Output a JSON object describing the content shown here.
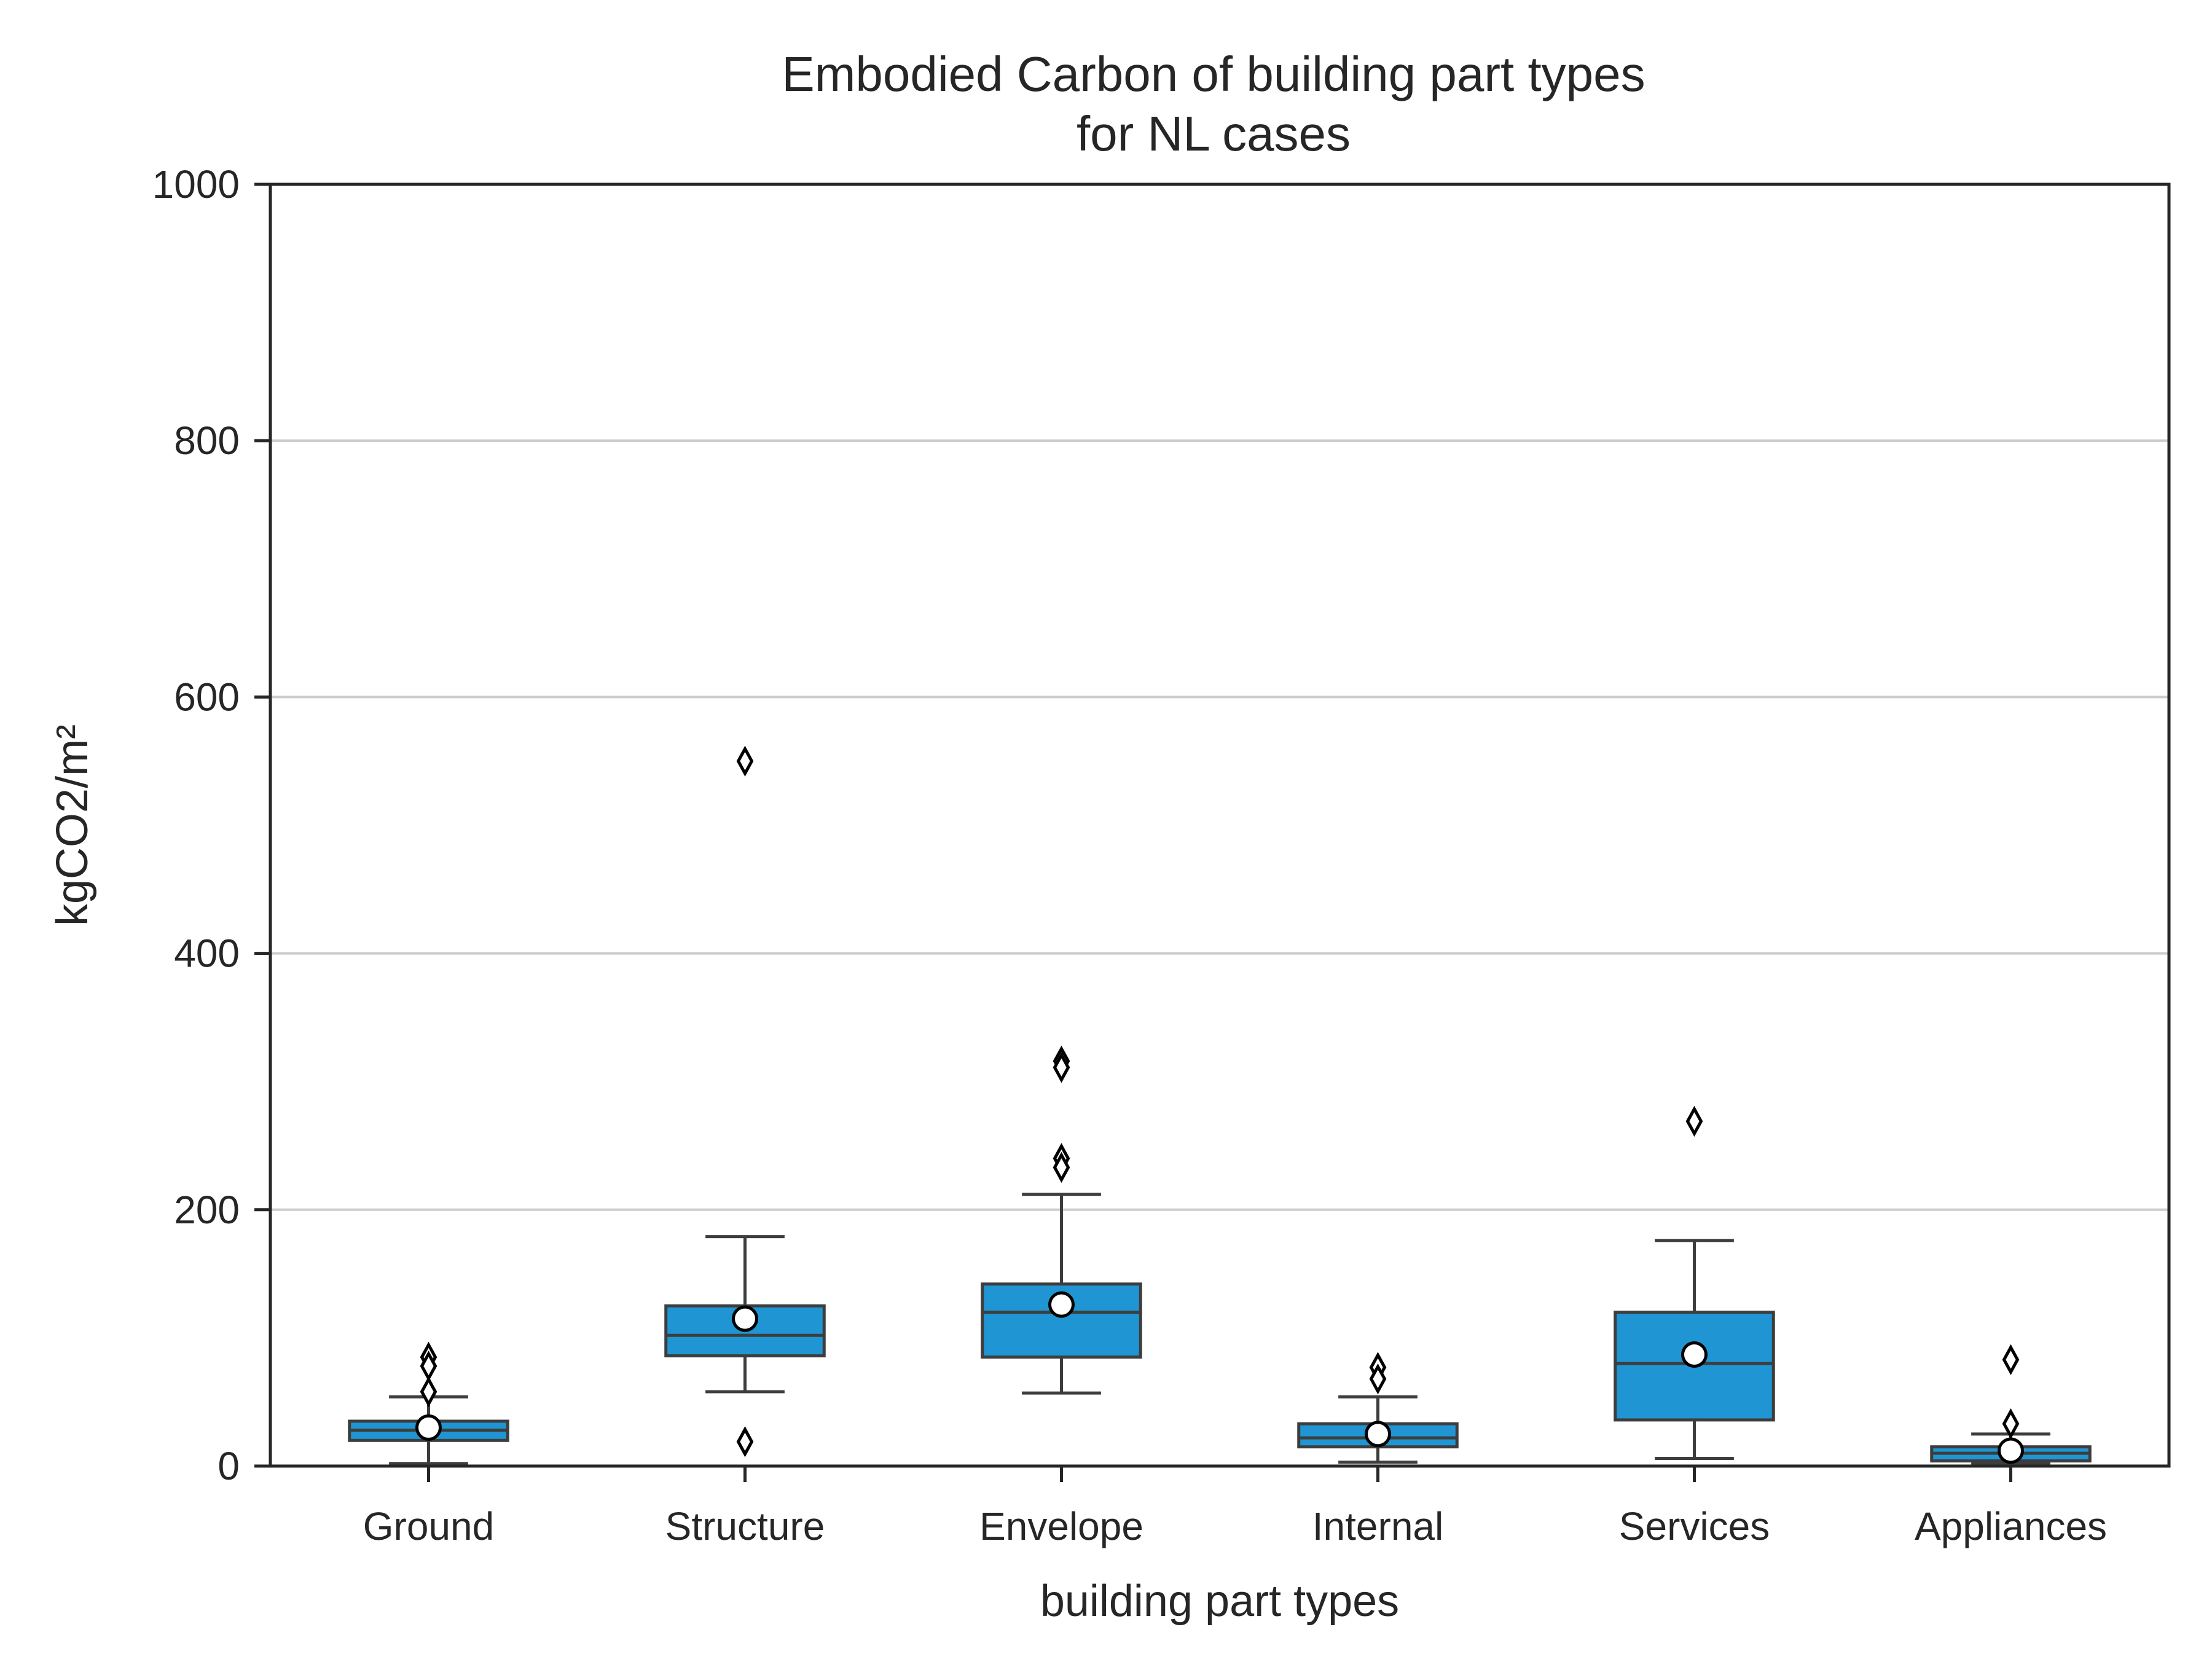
{
  "chart_data": {
    "type": "box",
    "title": [
      "Embodied Carbon of building part types",
      "for NL cases"
    ],
    "xlabel": "building part types",
    "ylabel": "kgCO2/m²",
    "ylim": [
      0,
      1000
    ],
    "yticks": [
      0,
      200,
      400,
      600,
      800,
      1000
    ],
    "grid": "horizontal",
    "box_color": "#1f96d3",
    "categories": [
      "Ground",
      "Structure",
      "Envelope",
      "Internal",
      "Services",
      "Appliances"
    ],
    "boxes": [
      {
        "category": "Ground",
        "whisker_low": 2,
        "q1": 20,
        "median": 28,
        "q3": 35,
        "whisker_high": 54,
        "mean": 30,
        "outliers": [
          85,
          78,
          58
        ]
      },
      {
        "category": "Structure",
        "whisker_low": 58,
        "q1": 86,
        "median": 102,
        "q3": 125,
        "whisker_high": 179,
        "mean": 115,
        "outliers": [
          550,
          19
        ]
      },
      {
        "category": "Envelope",
        "whisker_low": 57,
        "q1": 85,
        "median": 120,
        "q3": 142,
        "whisker_high": 212,
        "mean": 126,
        "outliers": [
          316,
          311,
          240,
          233
        ]
      },
      {
        "category": "Internal",
        "whisker_low": 3,
        "q1": 15,
        "median": 22,
        "q3": 33,
        "whisker_high": 54,
        "mean": 25,
        "outliers": [
          77,
          68
        ]
      },
      {
        "category": "Services",
        "whisker_low": 6,
        "q1": 36,
        "median": 80,
        "q3": 120,
        "whisker_high": 176,
        "mean": 87,
        "outliers": [
          269
        ]
      },
      {
        "category": "Appliances",
        "whisker_low": 2,
        "q1": 4,
        "median": 10,
        "q3": 15,
        "whisker_high": 25,
        "mean": 12,
        "outliers": [
          83,
          33
        ]
      }
    ]
  }
}
